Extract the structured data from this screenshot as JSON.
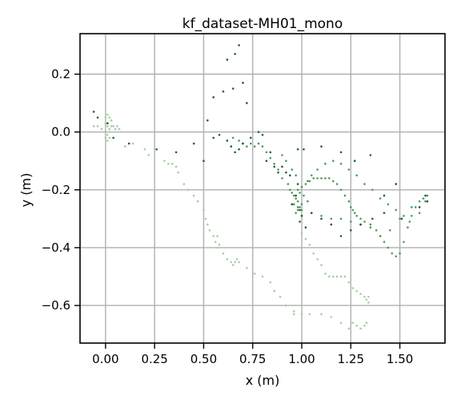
{
  "chart_data": {
    "type": "scatter",
    "title": "kf_dataset-MH01_mono",
    "xlabel": "x (m)",
    "ylabel": "y (m)",
    "xlim": [
      -0.13,
      1.73
    ],
    "ylim": [
      -0.73,
      0.34
    ],
    "xticks": [
      0.0,
      0.25,
      0.5,
      0.75,
      1.0,
      1.25,
      1.5
    ],
    "xtick_labels": [
      "0.00",
      "0.25",
      "0.50",
      "0.75",
      "1.00",
      "1.25",
      "1.50"
    ],
    "yticks": [
      0.2,
      0.0,
      -0.2,
      -0.4,
      -0.6
    ],
    "ytick_labels": [
      "0.2",
      "0.0",
      "−0.2",
      "−0.4",
      "−0.6"
    ],
    "grid": true,
    "colors": {
      "dark": "#1f5f38",
      "mid": "#4e9a5c",
      "light": "#a5cfa0"
    },
    "series": [
      {
        "color": "#a5cfa0",
        "x": [
          -0.06,
          -0.04,
          -0.02,
          0.0,
          0.01,
          0.02,
          0.03,
          0.04,
          0.05,
          0.06,
          0.07,
          0.0,
          0.01,
          0.02,
          0.03,
          0.02,
          0.01,
          0.0,
          0.01,
          0.02,
          0.03,
          0.1,
          0.14,
          0.2,
          0.22,
          0.3,
          0.32,
          0.34,
          0.36,
          0.37,
          0.4,
          0.42,
          0.45,
          0.47,
          0.5,
          0.51,
          0.52,
          0.53,
          0.55,
          0.56,
          0.57,
          0.57,
          0.58,
          0.6,
          0.62,
          0.64,
          0.65,
          0.66,
          0.67,
          0.68,
          0.72,
          0.76,
          0.8,
          0.84,
          0.86,
          0.89,
          0.92,
          0.96,
          1.0,
          1.02,
          1.04,
          1.06,
          1.08,
          1.1,
          1.12,
          1.14,
          1.16,
          1.18,
          1.2,
          1.22,
          1.24,
          1.26,
          1.28,
          1.3,
          1.32,
          1.33,
          1.34,
          1.34,
          1.33,
          1.32,
          1.3,
          1.28,
          1.26,
          1.24,
          1.2,
          1.15,
          1.1,
          1.04,
          1.0,
          0.96
        ],
        "y": [
          0.02,
          0.02,
          0.01,
          0.03,
          0.02,
          0.01,
          0.04,
          0.02,
          0.01,
          0.02,
          0.01,
          0.05,
          0.06,
          0.05,
          0.04,
          0.0,
          -0.01,
          -0.02,
          -0.03,
          -0.02,
          0.02,
          -0.05,
          -0.04,
          -0.06,
          -0.08,
          -0.1,
          -0.11,
          -0.11,
          -0.12,
          -0.14,
          -0.18,
          -0.2,
          -0.22,
          -0.24,
          -0.27,
          -0.3,
          -0.32,
          -0.34,
          -0.36,
          -0.38,
          -0.4,
          -0.36,
          -0.39,
          -0.42,
          -0.44,
          -0.45,
          -0.46,
          -0.45,
          -0.44,
          -0.45,
          -0.47,
          -0.49,
          -0.5,
          -0.52,
          -0.55,
          -0.57,
          -0.6,
          -0.62,
          -0.35,
          -0.37,
          -0.39,
          -0.42,
          -0.44,
          -0.46,
          -0.49,
          -0.5,
          -0.5,
          -0.5,
          -0.5,
          -0.5,
          -0.52,
          -0.54,
          -0.55,
          -0.56,
          -0.57,
          -0.58,
          -0.59,
          -0.57,
          -0.66,
          -0.67,
          -0.68,
          -0.67,
          -0.66,
          -0.68,
          -0.66,
          -0.64,
          -0.63,
          -0.63,
          -0.63,
          -0.63
        ]
      },
      {
        "color": "#4e9a5c",
        "x": [
          0.98,
          1.0,
          1.02,
          1.04,
          1.06,
          1.08,
          1.1,
          1.12,
          1.14,
          1.16,
          1.18,
          1.2,
          1.22,
          1.24,
          1.25,
          1.26,
          1.27,
          1.28,
          1.3,
          1.32,
          1.35,
          1.38,
          1.4,
          1.42,
          1.44,
          1.46,
          1.48,
          1.5,
          1.52,
          1.54,
          1.56,
          1.58,
          1.6,
          1.62,
          1.64,
          1.63,
          1.6,
          1.55,
          1.5,
          1.45,
          1.4,
          1.35,
          1.3,
          1.25,
          1.2,
          1.15,
          1.1,
          1.05,
          1.0,
          0.98,
          0.96,
          0.97,
          0.99,
          1.01,
          1.03,
          0.97,
          0.98,
          0.99,
          1.0,
          0.98,
          0.97,
          0.96,
          0.95,
          0.94,
          0.93,
          0.9,
          0.88,
          0.86,
          0.84,
          0.82,
          0.8,
          0.78,
          0.76,
          0.74,
          0.72,
          0.7,
          0.68,
          0.65,
          0.9,
          0.92,
          0.95,
          0.97,
          1.03,
          1.05,
          1.08,
          1.12,
          1.16,
          1.2,
          1.24,
          1.28,
          1.32,
          1.36,
          1.4,
          1.44,
          1.48,
          1.52,
          1.56
        ],
        "y": [
          -0.2,
          -0.19,
          -0.18,
          -0.17,
          -0.16,
          -0.16,
          -0.16,
          -0.16,
          -0.16,
          -0.17,
          -0.18,
          -0.2,
          -0.22,
          -0.24,
          -0.26,
          -0.27,
          -0.28,
          -0.29,
          -0.3,
          -0.31,
          -0.32,
          -0.34,
          -0.36,
          -0.38,
          -0.4,
          -0.42,
          -0.43,
          -0.42,
          -0.38,
          -0.33,
          -0.29,
          -0.26,
          -0.24,
          -0.23,
          -0.22,
          -0.24,
          -0.28,
          -0.31,
          -0.3,
          -0.34,
          -0.36,
          -0.33,
          -0.32,
          -0.31,
          -0.3,
          -0.3,
          -0.29,
          -0.28,
          -0.27,
          -0.26,
          -0.25,
          -0.23,
          -0.21,
          -0.22,
          -0.24,
          -0.28,
          -0.27,
          -0.26,
          -0.25,
          -0.24,
          -0.23,
          -0.22,
          -0.21,
          -0.2,
          -0.18,
          -0.16,
          -0.13,
          -0.11,
          -0.09,
          -0.07,
          -0.05,
          -0.04,
          -0.05,
          -0.04,
          -0.05,
          -0.04,
          -0.03,
          -0.02,
          -0.08,
          -0.1,
          -0.13,
          -0.15,
          -0.17,
          -0.15,
          -0.13,
          -0.11,
          -0.1,
          -0.11,
          -0.13,
          -0.15,
          -0.18,
          -0.2,
          -0.23,
          -0.25,
          -0.27,
          -0.29,
          -0.26
        ]
      },
      {
        "color": "#1f5f38",
        "x": [
          -0.06,
          -0.04,
          0.01,
          0.04,
          0.12,
          0.26,
          0.36,
          0.45,
          0.5,
          0.52,
          0.55,
          0.6,
          0.62,
          0.65,
          0.66,
          0.68,
          0.7,
          0.72,
          0.55,
          0.58,
          0.62,
          0.64,
          0.66,
          0.68,
          0.7,
          0.74,
          0.78,
          0.8,
          0.82,
          0.84,
          0.86,
          0.88,
          0.9,
          0.92,
          0.94,
          0.98,
          1.01,
          1.1,
          1.2,
          1.27,
          1.35,
          1.42,
          1.48,
          1.51,
          1.6,
          1.63,
          1.64,
          1.42,
          1.36,
          1.3,
          1.25,
          1.2,
          1.15,
          1.1,
          1.05,
          1.0,
          0.95,
          0.99,
          0.98,
          0.97,
          0.99,
          1.02
        ],
        "y": [
          0.07,
          0.05,
          0.03,
          -0.02,
          -0.04,
          -0.06,
          -0.07,
          -0.04,
          -0.1,
          0.04,
          0.12,
          0.14,
          0.25,
          0.15,
          0.27,
          0.3,
          0.17,
          0.1,
          -0.02,
          -0.01,
          -0.03,
          -0.05,
          -0.07,
          -0.06,
          -0.04,
          -0.02,
          0.0,
          -0.01,
          -0.1,
          -0.07,
          -0.12,
          -0.14,
          -0.12,
          -0.14,
          -0.15,
          -0.06,
          -0.06,
          -0.05,
          -0.07,
          -0.1,
          -0.08,
          -0.22,
          -0.18,
          -0.3,
          -0.26,
          -0.22,
          -0.24,
          -0.28,
          -0.3,
          -0.32,
          -0.34,
          -0.36,
          -0.32,
          -0.3,
          -0.28,
          -0.29,
          -0.25,
          -0.27,
          -0.18,
          -0.22,
          -0.31,
          -0.33
        ]
      }
    ]
  }
}
